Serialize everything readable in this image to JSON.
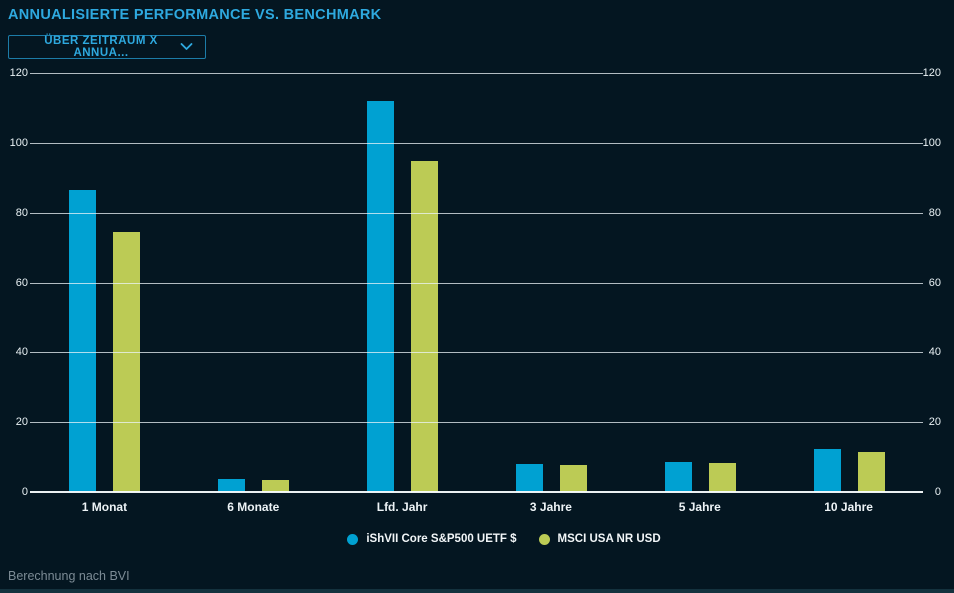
{
  "header": {
    "title": "ANNUALISIERTE PERFORMANCE VS. BENCHMARK",
    "dropdown_label": "ÜBER ZEITRAUM X ANNUA...",
    "accent_color": "#2EA9DF",
    "dropdown_border_color": "#1C7CA8"
  },
  "chart_data": {
    "type": "bar",
    "title": "ANNUALISIERTE PERFORMANCE VS. BENCHMARK",
    "categories": [
      "1 Monat",
      "6 Monate",
      "Lfd. Jahr",
      "3 Jahre",
      "5 Jahre",
      "10 Jahre"
    ],
    "series": [
      {
        "name": "iShVII Core S&P500 UETF $",
        "color": "#00A1D2",
        "values": [
          86.5,
          3.8,
          112.0,
          8.0,
          8.7,
          12.2
        ]
      },
      {
        "name": "MSCI USA NR USD",
        "color": "#BCCB55",
        "values": [
          74.5,
          3.3,
          94.7,
          7.6,
          8.3,
          11.6
        ]
      }
    ],
    "xlabel": "",
    "ylabel": "",
    "ylim": [
      0,
      120
    ],
    "yticks": [
      0,
      20,
      40,
      60,
      80,
      100,
      120
    ],
    "grid": true,
    "grid_on_top_of_bars": true,
    "legend_position": "bottom",
    "background_color": "#041621",
    "gridline_color": "#ECF4F8",
    "tick_label_color": "#E9F1F4"
  },
  "footer": {
    "note": "Berechnung nach BVI"
  }
}
